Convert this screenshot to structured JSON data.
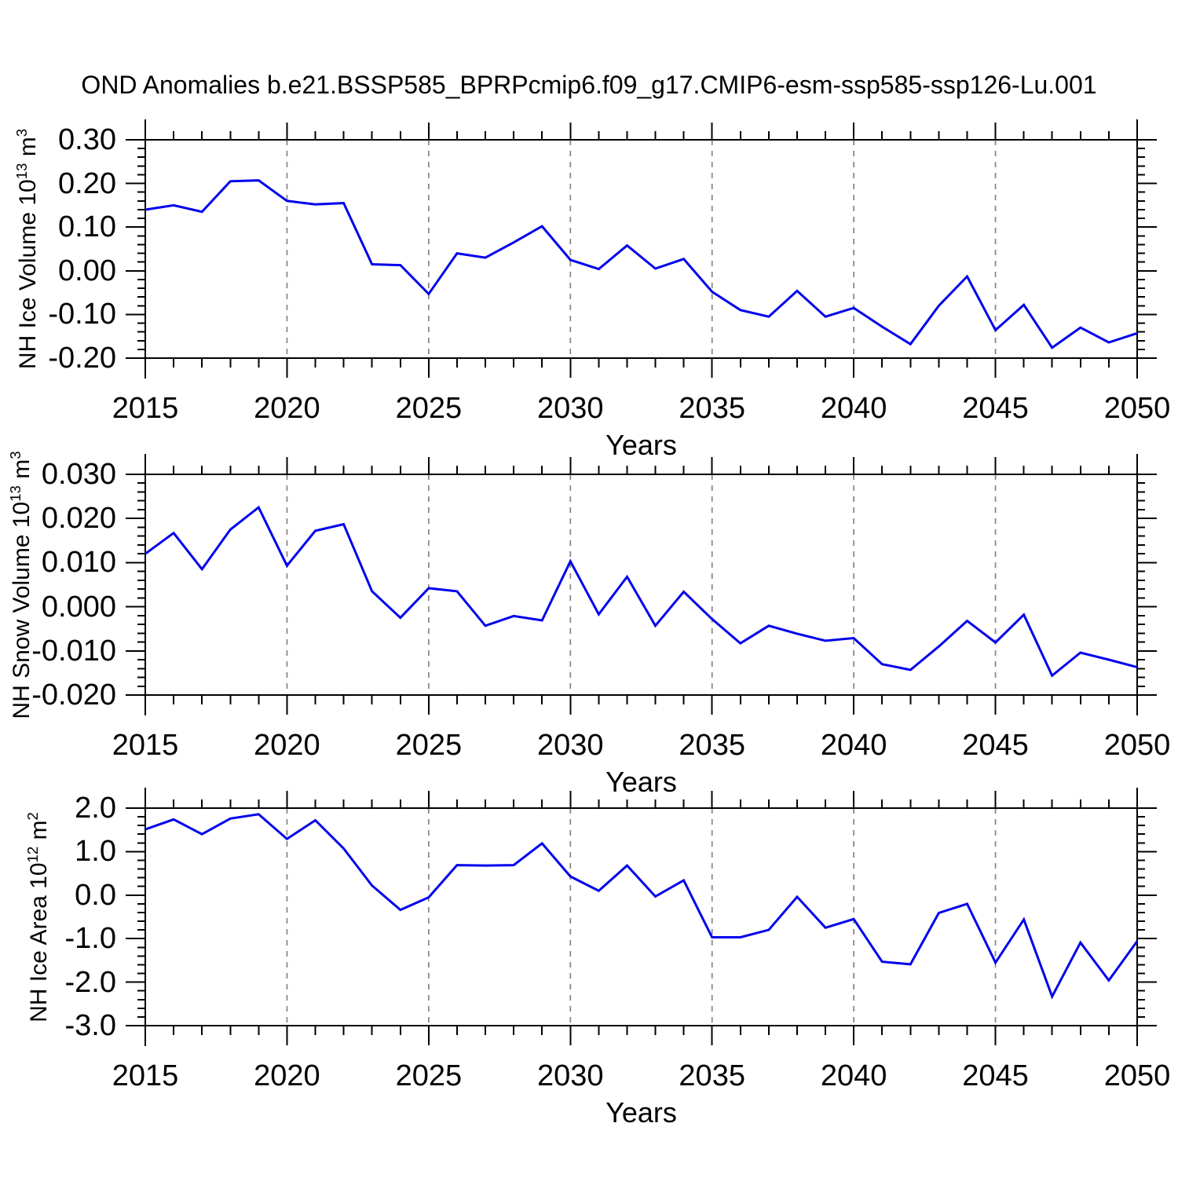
{
  "title": "OND Anomalies b.e21.BSSP585_BPRPcmip6.f09_g17.CMIP6-esm-ssp585-ssp126-Lu.001",
  "line_color": "#0000EE",
  "gridline_color": "#8a8a8a",
  "axis_color": "#000000",
  "chart_data": {
    "type": "line",
    "x_label": "Years",
    "years": [
      2015,
      2016,
      2017,
      2018,
      2019,
      2020,
      2021,
      2022,
      2023,
      2024,
      2025,
      2026,
      2027,
      2028,
      2029,
      2030,
      2031,
      2032,
      2033,
      2034,
      2035,
      2036,
      2037,
      2038,
      2039,
      2040,
      2041,
      2042,
      2043,
      2044,
      2045,
      2046,
      2047,
      2048,
      2049,
      2050
    ],
    "xlim": [
      2015,
      2050
    ],
    "xticks": {
      "values": [
        2015,
        2020,
        2025,
        2030,
        2035,
        2040,
        2045,
        2050
      ],
      "labels": [
        "2015",
        "2020",
        "2025",
        "2030",
        "2035",
        "2040",
        "2045",
        "2050"
      ]
    },
    "xminor_step": 1,
    "grid_years": [
      2020,
      2025,
      2030,
      2035,
      2040,
      2045
    ],
    "grid_style": "dashed",
    "legend": "none",
    "panels": [
      {
        "name": "nh-ice-volume",
        "ylabel": {
          "main": "NH Ice Volume 10",
          "exp": "13",
          "unit": " m",
          "unit_exp": "3"
        },
        "ylim": [
          -0.2,
          0.3
        ],
        "yticks": {
          "values": [
            0.3,
            0.2,
            0.1,
            0.0,
            -0.1,
            -0.2
          ],
          "labels": [
            "0.30",
            "0.20",
            "0.10",
            "0.00",
            "-0.10",
            "-0.20"
          ]
        },
        "yminor_step": 0.02,
        "values": [
          0.14,
          0.15,
          0.135,
          0.205,
          0.207,
          0.16,
          0.152,
          0.155,
          0.015,
          0.013,
          -0.053,
          0.04,
          0.03,
          0.065,
          0.102,
          0.025,
          0.004,
          0.058,
          0.005,
          0.027,
          -0.048,
          -0.09,
          -0.105,
          -0.046,
          -0.105,
          -0.085,
          -0.128,
          -0.168,
          -0.08,
          -0.013,
          -0.136,
          -0.078,
          -0.176,
          -0.13,
          -0.164,
          -0.143
        ]
      },
      {
        "name": "nh-snow-volume",
        "ylabel": {
          "main": "NH Snow Volume 10",
          "exp": "13",
          "unit": " m",
          "unit_exp": "3"
        },
        "ylim": [
          -0.02,
          0.03
        ],
        "yticks": {
          "values": [
            0.03,
            0.02,
            0.01,
            0.0,
            -0.01,
            -0.02
          ],
          "labels": [
            "0.030",
            "0.020",
            "0.010",
            "0.000",
            "-0.010",
            "-0.020"
          ]
        },
        "yminor_step": 0.002,
        "values": [
          0.012,
          0.0167,
          0.0085,
          0.0175,
          0.0225,
          0.0093,
          0.0172,
          0.0187,
          0.0035,
          -0.0025,
          0.0042,
          0.0035,
          -0.0043,
          -0.0021,
          -0.0031,
          0.0103,
          -0.0017,
          0.0068,
          -0.0043,
          0.0034,
          -0.0028,
          -0.0083,
          -0.0043,
          -0.0061,
          -0.0077,
          -0.0071,
          -0.013,
          -0.0143,
          -0.009,
          -0.0032,
          -0.0081,
          -0.0018,
          -0.0156,
          -0.0104,
          -0.012,
          -0.0137
        ]
      },
      {
        "name": "nh-ice-area",
        "ylabel": {
          "main": "NH Ice Area 10",
          "exp": "12",
          "unit": " m",
          "unit_exp": "2"
        },
        "ylim": [
          -3.0,
          2.0
        ],
        "yticks": {
          "values": [
            2.0,
            1.0,
            0.0,
            -1.0,
            -2.0,
            -3.0
          ],
          "labels": [
            "2.0",
            "1.0",
            "0.0",
            "-1.0",
            "-2.0",
            "-3.0"
          ]
        },
        "yminor_step": 0.2,
        "values": [
          1.51,
          1.74,
          1.4,
          1.76,
          1.86,
          1.29,
          1.72,
          1.07,
          0.22,
          -0.34,
          -0.05,
          0.69,
          0.68,
          0.69,
          1.19,
          0.43,
          0.1,
          0.68,
          -0.03,
          0.34,
          -0.97,
          -0.97,
          -0.8,
          -0.04,
          -0.75,
          -0.55,
          -1.53,
          -1.59,
          -0.41,
          -0.2,
          -1.55,
          -0.56,
          -2.33,
          -1.09,
          -1.96,
          -1.06
        ]
      }
    ]
  }
}
